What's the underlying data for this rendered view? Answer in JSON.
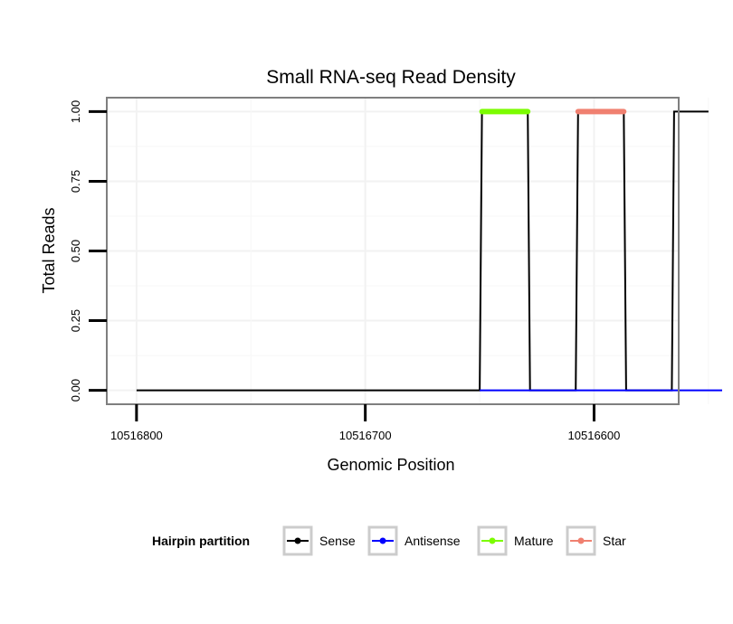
{
  "chart_data": {
    "type": "line",
    "title": "Small RNA-seq Read Density",
    "xlabel": "Genomic Position",
    "ylabel": "Total Reads",
    "x_reversed": true,
    "xlim": [
      10516813,
      10516563
    ],
    "ylim": [
      -0.05,
      1.05
    ],
    "x_ticks": [
      10516800,
      10516700,
      10516600
    ],
    "x_tick_labels": [
      "10516800",
      "10516700",
      "10516600"
    ],
    "y_ticks": [
      0,
      0.25,
      0.5,
      0.75,
      1
    ],
    "y_tick_labels": [
      "0.00",
      "0.25",
      "0.50",
      "0.75",
      "1.00"
    ],
    "grid": true,
    "legend": {
      "title": "Hairpin partition",
      "position": "bottom",
      "entries": [
        {
          "name": "Sense",
          "color": "#000000"
        },
        {
          "name": "Antisense",
          "color": "#0000ff"
        },
        {
          "name": "Mature",
          "color": "#7cfc00"
        },
        {
          "name": "Star",
          "color": "#f08070"
        }
      ]
    },
    "series": [
      {
        "name": "Sense",
        "color": "#000000",
        "x": [
          10516800,
          10516650,
          10516649,
          10516629,
          10516628,
          10516608,
          10516607,
          10516587,
          10516586,
          10516566,
          10516565,
          10516550
        ],
        "y": [
          0,
          0,
          1,
          1,
          0,
          0,
          1,
          1,
          0,
          0,
          1,
          1
        ]
      },
      {
        "name": "Antisense",
        "color": "#0000ff",
        "x": [
          10516650,
          10516628,
          10516608,
          10516586,
          10516566,
          10516544
        ],
        "y": [
          0,
          0,
          0,
          0,
          0,
          0
        ]
      },
      {
        "name": "Mature",
        "color": "#7cfc00",
        "x": [
          10516649,
          10516629
        ],
        "y": [
          1,
          1
        ]
      },
      {
        "name": "Star",
        "color": "#f08070",
        "x": [
          10516607,
          10516587
        ],
        "y": [
          1,
          1
        ]
      }
    ]
  }
}
